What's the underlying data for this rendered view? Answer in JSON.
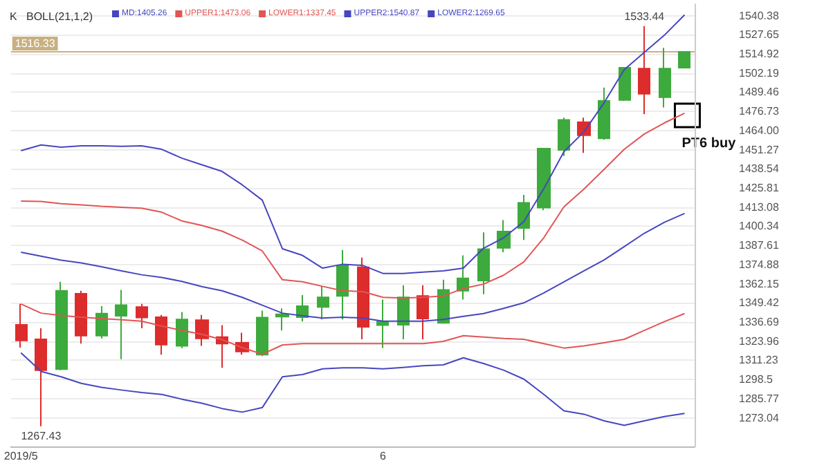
{
  "chart_data": {
    "type": "candlestick",
    "title": "K",
    "subtitle": "BOLL(21,1,2)",
    "categories": [
      "2019/5",
      null,
      null,
      null,
      null,
      null,
      null,
      null,
      null,
      null,
      null,
      null,
      null,
      null,
      null,
      null,
      null,
      null,
      "6",
      null,
      null,
      null,
      null,
      null,
      null,
      null,
      null,
      null,
      null,
      null,
      null,
      null,
      null,
      null
    ],
    "ohlc": [
      [
        1334.9,
        1348.7,
        1319.7,
        1324.4
      ],
      [
        1325.2,
        1332.6,
        1267.43,
        1304.7
      ],
      [
        1305.3,
        1363.4,
        1304.7,
        1357.5
      ],
      [
        1355.5,
        1357.5,
        1322.3,
        1327.6
      ],
      [
        1327.6,
        1347.2,
        1325.8,
        1342.3
      ],
      [
        1340.8,
        1358.1,
        1312.0,
        1347.9
      ],
      [
        1346.7,
        1348.7,
        1332.6,
        1339.7
      ],
      [
        1339.9,
        1341.4,
        1315.0,
        1321.7
      ],
      [
        1320.8,
        1343.4,
        1319.4,
        1338.4
      ],
      [
        1337.9,
        1341.4,
        1320.8,
        1325.8
      ],
      [
        1326.7,
        1334.6,
        1306.2,
        1322.3
      ],
      [
        1322.9,
        1329.6,
        1315.0,
        1317.0
      ],
      [
        1315.0,
        1344.3,
        1314.1,
        1339.7
      ],
      [
        1340.2,
        1345.8,
        1331.1,
        1341.9
      ],
      [
        1339.9,
        1354.6,
        1337.0,
        1347.2
      ],
      [
        1346.7,
        1360.4,
        1338.4,
        1353.1
      ],
      [
        1354.0,
        1384.6,
        1338.4,
        1374.3
      ],
      [
        1373.1,
        1379.5,
        1325.2,
        1333.5
      ],
      [
        1334.6,
        1351.6,
        1319.4,
        1337.0
      ],
      [
        1334.9,
        1361.1,
        1325.2,
        1353.1
      ],
      [
        1354.0,
        1361.1,
        1325.2,
        1339.0
      ],
      [
        1336.1,
        1364.8,
        1335.5,
        1358.1
      ],
      [
        1357.5,
        1381.0,
        1351.6,
        1365.7
      ],
      [
        1364.3,
        1396.3,
        1355.2,
        1385.1
      ],
      [
        1386.0,
        1404.5,
        1383.1,
        1396.9
      ],
      [
        1399.2,
        1421.2,
        1391.2,
        1415.9
      ],
      [
        1412.7,
        1452.0,
        1411.0,
        1452.0
      ],
      [
        1451.1,
        1472.6,
        1447.0,
        1471.1
      ],
      [
        1469.6,
        1472.6,
        1449.1,
        1460.8
      ],
      [
        1458.8,
        1492.5,
        1457.9,
        1483.7
      ],
      [
        1484.3,
        1505.7,
        1483.7,
        1505.7
      ],
      [
        1505.2,
        1533.44,
        1474.9,
        1488.4
      ],
      [
        1486.1,
        1518.9,
        1479.3,
        1505.2
      ],
      [
        1505.7,
        1516.33,
        1505.7,
        1516.33
      ]
    ],
    "colors": [
      "#dd2c2c",
      "#dd2c2c",
      "#3caa3c",
      "#dd2c2c",
      "#3caa3c",
      "#3caa3c",
      "#dd2c2c",
      "#dd2c2c",
      "#3caa3c",
      "#dd2c2c",
      "#dd2c2c",
      "#dd2c2c",
      "#3caa3c",
      "#3caa3c",
      "#3caa3c",
      "#3caa3c",
      "#3caa3c",
      "#dd2c2c",
      "#3caa3c",
      "#3caa3c",
      "#dd2c2c",
      "#3caa3c",
      "#3caa3c",
      "#3caa3c",
      "#3caa3c",
      "#3caa3c",
      "#3caa3c",
      "#3caa3c",
      "#dd2c2c",
      "#3caa3c",
      "#3caa3c",
      "#dd2c2c",
      "#3caa3c",
      "#3caa3c"
    ],
    "series": [
      {
        "type": "line",
        "name": "MD:1405.26",
        "color": "#4646c0",
        "values": [
          1383.1,
          1380.4,
          1377.8,
          1376.0,
          1373.4,
          1370.7,
          1368.1,
          1366.3,
          1363.7,
          1360.2,
          1357.5,
          1353.1,
          1347.9,
          1342.6,
          1340.8,
          1339.3,
          1339.9,
          1339.3,
          1337.3,
          1337.3,
          1337.3,
          1338.4,
          1340.5,
          1342.3,
          1345.8,
          1349.4,
          1356.0,
          1363.4,
          1370.7,
          1378.0,
          1386.8,
          1395.7,
          1403.0,
          1408.9
        ]
      },
      {
        "type": "line",
        "name": "UPPER1:1473.06",
        "color": "#e05555",
        "values": [
          1417.1,
          1416.8,
          1415.4,
          1414.5,
          1413.6,
          1413.0,
          1412.4,
          1409.7,
          1403.9,
          1400.9,
          1397.1,
          1391.2,
          1383.9,
          1364.8,
          1363.4,
          1360.4,
          1357.5,
          1356.9,
          1353.1,
          1352.7,
          1353.1,
          1354.0,
          1359.0,
          1361.9,
          1367.8,
          1376.6,
          1392.7,
          1413.3,
          1425.1,
          1438.2,
          1451.5,
          1461.7,
          1469.1,
          1475.5
        ]
      },
      {
        "type": "line",
        "name": "LOWER1:1337.45",
        "color": "#e05555",
        "values": [
          1348.7,
          1342.6,
          1341.1,
          1339.9,
          1339.0,
          1338.2,
          1337.3,
          1334.0,
          1331.1,
          1328.5,
          1325.0,
          1319.7,
          1315.3,
          1321.4,
          1322.3,
          1322.3,
          1322.3,
          1322.3,
          1322.3,
          1322.3,
          1322.3,
          1323.8,
          1327.6,
          1326.7,
          1325.8,
          1325.2,
          1322.3,
          1319.4,
          1320.8,
          1322.9,
          1325.2,
          1331.1,
          1337.0,
          1342.3
        ]
      },
      {
        "type": "line",
        "name": "UPPER2:1540.87",
        "color": "#4646c0",
        "values": [
          1450.6,
          1454.4,
          1452.9,
          1453.8,
          1453.8,
          1453.5,
          1453.8,
          1451.5,
          1445.6,
          1441.2,
          1436.8,
          1427.9,
          1417.7,
          1385.4,
          1381.0,
          1372.5,
          1375.1,
          1374.3,
          1369.0,
          1369.0,
          1369.9,
          1370.7,
          1372.5,
          1385.7,
          1392.7,
          1403.3,
          1425.3,
          1449.9,
          1463.2,
          1482.5,
          1504.5,
          1516.0,
          1527.4,
          1540.9
        ]
      },
      {
        "type": "line",
        "name": "LOWER2:1269.65",
        "color": "#4646c0",
        "values": [
          1316.2,
          1303.8,
          1300.3,
          1295.9,
          1293.3,
          1291.5,
          1289.8,
          1288.6,
          1285.4,
          1282.7,
          1279.2,
          1276.8,
          1279.8,
          1300.3,
          1301.8,
          1305.6,
          1306.2,
          1306.2,
          1305.6,
          1306.5,
          1307.6,
          1308.2,
          1312.9,
          1309.1,
          1304.7,
          1298.8,
          1288.6,
          1277.7,
          1275.4,
          1271.0,
          1268.0,
          1271.0,
          1273.9,
          1275.9
        ]
      }
    ],
    "ylim": [
      1254,
      1548
    ],
    "yticks": [
      1540.38,
      1527.65,
      1514.92,
      1502.19,
      1489.46,
      1476.73,
      {
        "value": 1464,
        "label": "1464.00"
      },
      1451.27,
      1438.54,
      1425.81,
      1413.08,
      1400.34,
      1387.61,
      1374.88,
      1362.15,
      1349.42,
      1336.69,
      1323.96,
      1311.23,
      1298.5,
      1285.77,
      1273.04
    ],
    "ref_lines": [
      {
        "axis": "y",
        "value": 1516.33,
        "label": "1516.33",
        "color": "#c8b080"
      }
    ],
    "annotations": [
      {
        "text": "1533.44",
        "y": 1533.44
      },
      {
        "text": "1267.43",
        "y": 1267.43
      },
      "PT6 buy"
    ],
    "grid": "y",
    "legend": "top left",
    "marker": "none",
    "line_style": "solid"
  }
}
